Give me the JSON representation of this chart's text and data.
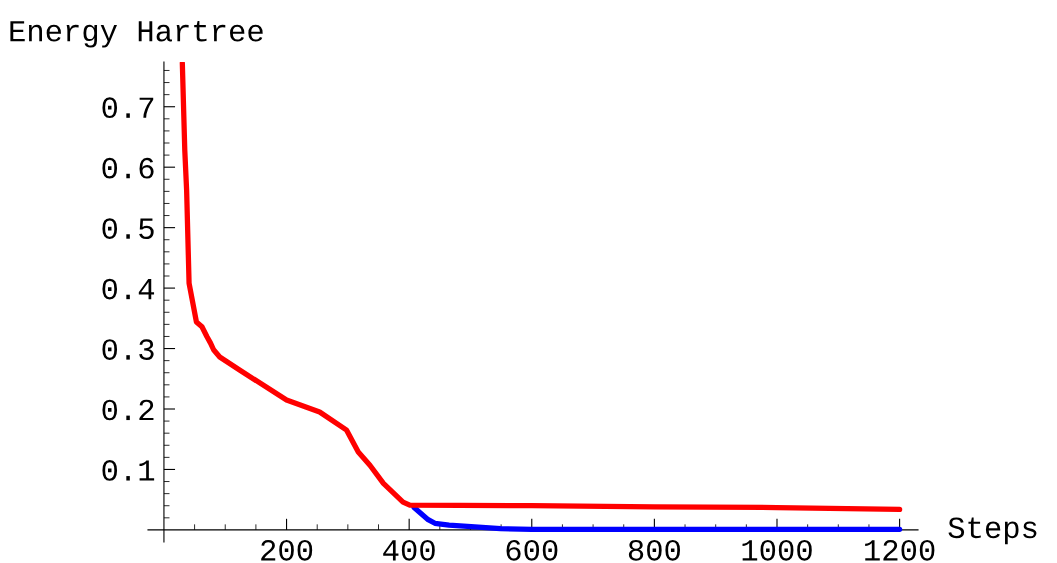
{
  "chart_data": {
    "type": "line",
    "xlabel": "Steps",
    "ylabel": "Energy Hartree",
    "xlim": [
      -26,
      1230
    ],
    "ylim": [
      -0.02,
      0.774
    ],
    "xticks": [
      {
        "value": 50,
        "label": null
      },
      {
        "value": 100,
        "label": null
      },
      {
        "value": 150,
        "label": null
      },
      200,
      {
        "value": 250,
        "label": null
      },
      {
        "value": 300,
        "label": null
      },
      {
        "value": 350,
        "label": null
      },
      400,
      {
        "value": 450,
        "label": null
      },
      {
        "value": 500,
        "label": null
      },
      {
        "value": 550,
        "label": null
      },
      600,
      {
        "value": 650,
        "label": null
      },
      {
        "value": 700,
        "label": null
      },
      {
        "value": 750,
        "label": null
      },
      800,
      {
        "value": 850,
        "label": null
      },
      {
        "value": 900,
        "label": null
      },
      {
        "value": 950,
        "label": null
      },
      1000,
      {
        "value": 1050,
        "label": null
      },
      {
        "value": 1100,
        "label": null
      },
      {
        "value": 1150,
        "label": null
      },
      1200
    ],
    "yticks": [
      {
        "value": 0.02,
        "label": null
      },
      {
        "value": 0.04,
        "label": null
      },
      {
        "value": 0.06,
        "label": null
      },
      {
        "value": 0.08,
        "label": null
      },
      0.1,
      {
        "value": 0.12,
        "label": null
      },
      {
        "value": 0.14,
        "label": null
      },
      {
        "value": 0.16,
        "label": null
      },
      {
        "value": 0.18,
        "label": null
      },
      0.2,
      {
        "value": 0.22,
        "label": null
      },
      {
        "value": 0.24,
        "label": null
      },
      {
        "value": 0.26,
        "label": null
      },
      {
        "value": 0.28,
        "label": null
      },
      0.3,
      {
        "value": 0.32,
        "label": null
      },
      {
        "value": 0.34,
        "label": null
      },
      {
        "value": 0.36,
        "label": null
      },
      {
        "value": 0.38,
        "label": null
      },
      0.4,
      {
        "value": 0.42,
        "label": null
      },
      {
        "value": 0.44,
        "label": null
      },
      {
        "value": 0.46,
        "label": null
      },
      {
        "value": 0.48,
        "label": null
      },
      0.5,
      {
        "value": 0.52,
        "label": null
      },
      {
        "value": 0.54,
        "label": null
      },
      {
        "value": 0.56,
        "label": null
      },
      {
        "value": 0.58,
        "label": null
      },
      0.6,
      {
        "value": 0.62,
        "label": null
      },
      {
        "value": 0.64,
        "label": null
      },
      {
        "value": 0.66,
        "label": null
      },
      {
        "value": 0.68,
        "label": null
      },
      0.7,
      {
        "value": 0.72,
        "label": null
      },
      {
        "value": 0.74,
        "label": null
      },
      {
        "value": 0.76,
        "label": null
      }
    ],
    "grid": false,
    "legend": false,
    "marker": "none",
    "line_style": "solid",
    "series": [
      {
        "color": "#0000ff",
        "x": [
          408,
          431,
          442,
          465,
          549,
          600,
          800,
          1000,
          1200
        ],
        "values": [
          0.037,
          0.017,
          0.011,
          0.008,
          0.002,
          0.001,
          0.001,
          0.001,
          0.001
        ]
      },
      {
        "color": "#ff0000",
        "x": [
          30,
          34,
          37,
          41,
          53,
          62,
          70,
          76,
          81,
          91,
          124,
          200,
          254,
          298,
          317,
          336,
          358,
          390,
          401,
          600,
          800,
          1000,
          1200
        ],
        "values": [
          0.772,
          0.628,
          0.562,
          0.408,
          0.344,
          0.336,
          0.32,
          0.309,
          0.298,
          0.286,
          0.264,
          0.215,
          0.195,
          0.165,
          0.129,
          0.107,
          0.077,
          0.046,
          0.041,
          0.04,
          0.038,
          0.037,
          0.034
        ]
      }
    ]
  }
}
